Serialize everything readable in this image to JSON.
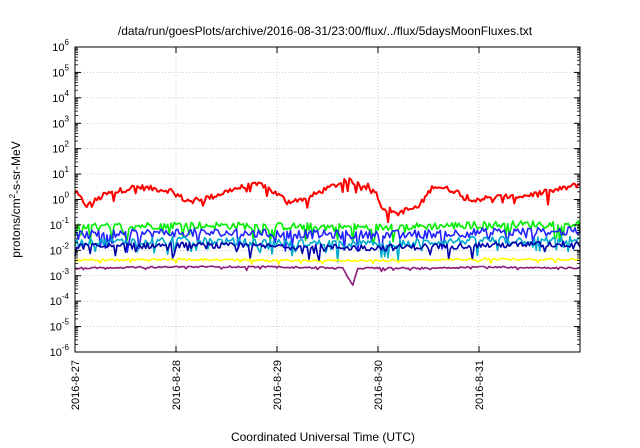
{
  "chart_data": {
    "type": "line",
    "title": "/data/run/goesPlots/archive/2016-08-31/23:00/flux/../flux/5daysMoonFluxes.txt",
    "xlabel": "Coordinated Universal Time (UTC)",
    "ylabel": {
      "prefix": "protons/cm",
      "sup": "2",
      "suffix": "-s-sr-MeV"
    },
    "y_scale": "log",
    "ylim_exponents": [
      -6,
      6
    ],
    "y_ticks": [
      {
        "base": "10",
        "exp": "-6"
      },
      {
        "base": "10",
        "exp": "-5"
      },
      {
        "base": "10",
        "exp": "-4"
      },
      {
        "base": "10",
        "exp": "-3"
      },
      {
        "base": "10",
        "exp": "-2"
      },
      {
        "base": "10",
        "exp": "-1"
      },
      {
        "base": "10",
        "exp": "0"
      },
      {
        "base": "10",
        "exp": "1"
      },
      {
        "base": "10",
        "exp": "2"
      },
      {
        "base": "10",
        "exp": "3"
      },
      {
        "base": "10",
        "exp": "4"
      },
      {
        "base": "10",
        "exp": "5"
      },
      {
        "base": "10",
        "exp": "6"
      }
    ],
    "x_ticks": [
      "2016-8-27",
      "2016-8-28",
      "2016-8-29",
      "2016-8-30",
      "2016-8-31"
    ],
    "x_range_days": [
      0,
      5
    ],
    "grid": true,
    "series": [
      {
        "color": "#ff0000",
        "log_anchors": [
          [
            0,
            0.3
          ],
          [
            0.12,
            -0.25
          ],
          [
            0.3,
            0.2
          ],
          [
            0.6,
            0.5
          ],
          [
            0.95,
            0.35
          ],
          [
            1.1,
            -0.05
          ],
          [
            1.35,
            0.1
          ],
          [
            1.6,
            0.45
          ],
          [
            1.85,
            0.6
          ],
          [
            2.1,
            -0.05
          ],
          [
            2.3,
            0.05
          ],
          [
            2.5,
            0.45
          ],
          [
            2.7,
            0.75
          ],
          [
            2.95,
            0.5
          ],
          [
            3.05,
            -0.35
          ],
          [
            3.2,
            -0.5
          ],
          [
            3.4,
            -0.3
          ],
          [
            3.55,
            0.55
          ],
          [
            3.75,
            0.35
          ],
          [
            3.95,
            0.0
          ],
          [
            4.2,
            0.1
          ],
          [
            4.45,
            0.15
          ],
          [
            4.75,
            0.35
          ],
          [
            5.0,
            0.6
          ]
        ],
        "noise": 0.22
      },
      {
        "color": "#00ee00",
        "log_anchors": [
          [
            0,
            -1.1
          ],
          [
            1.0,
            -1.0
          ],
          [
            2.0,
            -1.05
          ],
          [
            3.0,
            -1.1
          ],
          [
            4.0,
            -1.0
          ],
          [
            5.0,
            -0.95
          ]
        ],
        "noise": 0.3
      },
      {
        "color": "#2222ff",
        "log_anchors": [
          [
            0,
            -1.4
          ],
          [
            1.0,
            -1.3
          ],
          [
            2.0,
            -1.35
          ],
          [
            3.0,
            -1.4
          ],
          [
            4.0,
            -1.3
          ],
          [
            5.0,
            -1.25
          ]
        ],
        "noise": 0.35
      },
      {
        "color": "#00aacc",
        "log_anchors": [
          [
            0,
            -1.7
          ],
          [
            1.0,
            -1.6
          ],
          [
            2.0,
            -1.7
          ],
          [
            3.0,
            -1.75
          ],
          [
            4.0,
            -1.6
          ],
          [
            5.0,
            -1.6
          ]
        ],
        "noise": 0.3
      },
      {
        "color": "#0000aa",
        "log_anchors": [
          [
            0,
            -1.85
          ],
          [
            1.0,
            -1.8
          ],
          [
            2.0,
            -1.85
          ],
          [
            3.0,
            -1.9
          ],
          [
            4.0,
            -1.8
          ],
          [
            5.0,
            -1.75
          ]
        ],
        "noise": 0.25
      },
      {
        "color": "#ffff00",
        "log_anchors": [
          [
            0,
            -2.4
          ],
          [
            1.0,
            -2.35
          ],
          [
            2.0,
            -2.4
          ],
          [
            3.0,
            -2.4
          ],
          [
            4.0,
            -2.35
          ],
          [
            5.0,
            -2.35
          ]
        ],
        "noise": 0.08
      },
      {
        "color": "#8b1a7a",
        "log_anchors": [
          [
            0,
            -2.7
          ],
          [
            1.0,
            -2.65
          ],
          [
            2.0,
            -2.65
          ],
          [
            2.65,
            -2.7
          ],
          [
            2.75,
            -3.4
          ],
          [
            2.8,
            -2.7
          ],
          [
            3.5,
            -2.7
          ],
          [
            4.0,
            -2.65
          ],
          [
            5.0,
            -2.7
          ]
        ],
        "noise": 0.06
      }
    ]
  }
}
